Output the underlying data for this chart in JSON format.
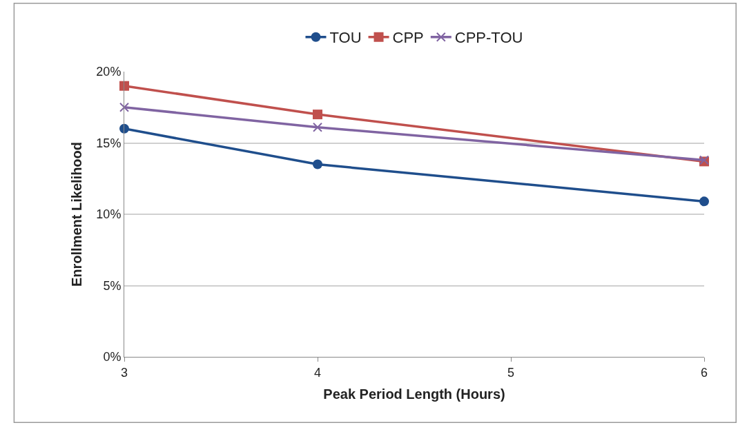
{
  "chart_data": {
    "type": "line",
    "xlabel": "Peak Period Length (Hours)",
    "ylabel": "Enrollment Likelihood",
    "x": [
      3,
      4,
      6
    ],
    "series": [
      {
        "name": "TOU",
        "color": "#1f4e8c",
        "marker": "circle",
        "values": [
          16.0,
          13.5,
          10.9
        ]
      },
      {
        "name": "CPP",
        "color": "#c0504d",
        "marker": "square",
        "values": [
          19.0,
          17.0,
          13.7
        ]
      },
      {
        "name": "CPP-TOU",
        "color": "#8064a2",
        "marker": "cross",
        "values": [
          17.5,
          16.1,
          13.8
        ]
      }
    ],
    "xlim": [
      3,
      6
    ],
    "xticks": [
      3,
      4,
      5,
      6
    ],
    "ylim": [
      0,
      20
    ],
    "yticks": [
      {
        "value": 0,
        "label": "0%"
      },
      {
        "value": 5,
        "label": "5%"
      },
      {
        "value": 10,
        "label": "10%"
      },
      {
        "value": 15,
        "label": "15%"
      },
      {
        "value": 20,
        "label": "20%"
      }
    ],
    "grid": "y",
    "legend": "top",
    "line_style": "solid"
  }
}
